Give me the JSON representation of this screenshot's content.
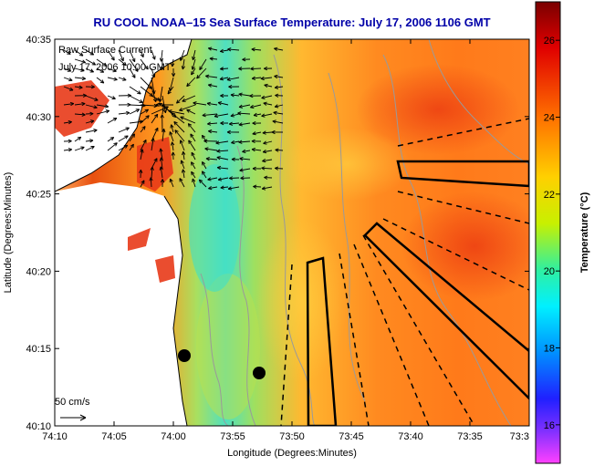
{
  "title": "RU COOL  NOAA–15  Sea Surface Temperature:  July 17, 2006 1106 GMT",
  "overlay": {
    "line1": "Raw Surface Current",
    "line2": "July 17, 2006 10:00 GMT",
    "scale_label": "50 cm/s"
  },
  "axes": {
    "xlabel": "Longitude (Degrees:Minutes)",
    "ylabel": "Latitude (Degrees:Minutes)",
    "x_ticks": [
      "74:10",
      "74:05",
      "74:00",
      "73:55",
      "73:50",
      "73:45",
      "73:40",
      "73:35",
      "73:3"
    ],
    "y_ticks": [
      "40:35",
      "40:30",
      "40:25",
      "40:20",
      "40:15",
      "40:10"
    ]
  },
  "colorbar": {
    "label": "Temperature (°C)",
    "ticks": [
      "26",
      "24",
      "22",
      "20",
      "18",
      "16"
    ],
    "range": [
      15,
      27
    ]
  },
  "colors": {
    "title": "#0000a8",
    "land": "#ffffff",
    "warm": "#f08a1e",
    "cool": "#3fdcb0",
    "hot": "#e02010",
    "current_vectors": "#000000",
    "contours": "#9a9a9a"
  }
}
